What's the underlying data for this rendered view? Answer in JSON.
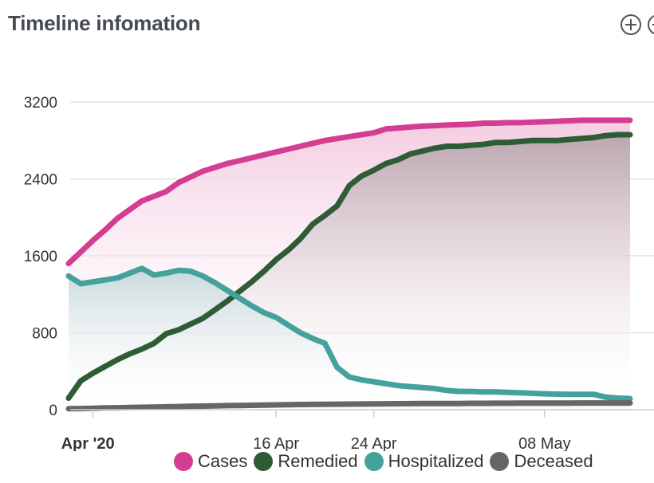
{
  "header": {
    "title": "Timeline infomation"
  },
  "toolbar": {
    "zoom_in_icon": "plus-circle-icon",
    "partial_icon": "circle-icon"
  },
  "chart_data": {
    "type": "area",
    "title": "Timeline infomation",
    "xlabel": "",
    "ylabel": "",
    "ylim": [
      0,
      3200
    ],
    "yticks": [
      "0",
      "800",
      "1600",
      "2400",
      "3200"
    ],
    "ytick_values": [
      0,
      800,
      1600,
      2400,
      3200
    ],
    "xticks": [
      "Apr '20",
      "16 Apr",
      "24 Apr",
      "08 May"
    ],
    "xtick_dates": [
      "2020-04-01",
      "2020-04-16",
      "2020-04-24",
      "2020-05-08"
    ],
    "xtick_bold": [
      true,
      false,
      false,
      false
    ],
    "xlim": [
      "2020-03-30",
      "2020-05-15"
    ],
    "grid": true,
    "legend_position": "bottom-center",
    "x": [
      "2020-03-30",
      "2020-03-31",
      "2020-04-01",
      "2020-04-02",
      "2020-04-03",
      "2020-04-04",
      "2020-04-05",
      "2020-04-06",
      "2020-04-07",
      "2020-04-08",
      "2020-04-09",
      "2020-04-10",
      "2020-04-11",
      "2020-04-12",
      "2020-04-13",
      "2020-04-14",
      "2020-04-15",
      "2020-04-16",
      "2020-04-17",
      "2020-04-18",
      "2020-04-19",
      "2020-04-20",
      "2020-04-21",
      "2020-04-22",
      "2020-04-23",
      "2020-04-24",
      "2020-04-25",
      "2020-04-26",
      "2020-04-27",
      "2020-04-28",
      "2020-04-29",
      "2020-04-30",
      "2020-05-01",
      "2020-05-02",
      "2020-05-03",
      "2020-05-04",
      "2020-05-05",
      "2020-05-06",
      "2020-05-07",
      "2020-05-08",
      "2020-05-09",
      "2020-05-10",
      "2020-05-11",
      "2020-05-12",
      "2020-05-13",
      "2020-05-14",
      "2020-05-15"
    ],
    "series": [
      {
        "name": "Cases",
        "color": "#d33d92",
        "fill": "#f7d9e9",
        "values": [
          1520,
          1640,
          1760,
          1870,
          1990,
          2080,
          2170,
          2220,
          2270,
          2360,
          2420,
          2480,
          2520,
          2560,
          2590,
          2620,
          2650,
          2680,
          2710,
          2740,
          2770,
          2800,
          2820,
          2840,
          2860,
          2880,
          2920,
          2930,
          2940,
          2950,
          2955,
          2960,
          2965,
          2970,
          2980,
          2980,
          2985,
          2985,
          2990,
          2995,
          3000,
          3005,
          3010,
          3010,
          3010,
          3010,
          3010
        ]
      },
      {
        "name": "Remedied",
        "color": "#2d5c36",
        "fill": "#d7cfd3",
        "values": [
          120,
          300,
          380,
          450,
          520,
          580,
          630,
          690,
          790,
          830,
          890,
          950,
          1040,
          1130,
          1230,
          1330,
          1440,
          1560,
          1660,
          1780,
          1930,
          2020,
          2120,
          2330,
          2430,
          2490,
          2560,
          2600,
          2660,
          2690,
          2720,
          2740,
          2740,
          2750,
          2760,
          2780,
          2780,
          2790,
          2800,
          2800,
          2800,
          2810,
          2820,
          2830,
          2850,
          2860,
          2860
        ]
      },
      {
        "name": "Hospitalized",
        "color": "#45a19b",
        "fill": "#dbe7e8",
        "values": [
          1390,
          1310,
          1330,
          1350,
          1370,
          1420,
          1470,
          1400,
          1420,
          1450,
          1440,
          1390,
          1320,
          1240,
          1160,
          1080,
          1010,
          960,
          880,
          800,
          740,
          690,
          440,
          340,
          310,
          290,
          270,
          250,
          240,
          230,
          220,
          200,
          190,
          190,
          185,
          185,
          180,
          175,
          170,
          165,
          162,
          160,
          160,
          160,
          130,
          120,
          115
        ]
      },
      {
        "name": "Deceased",
        "color": "#666666",
        "fill": "#777777",
        "values": [
          10,
          12,
          15,
          18,
          20,
          22,
          25,
          27,
          30,
          32,
          35,
          37,
          40,
          42,
          44,
          46,
          48,
          50,
          52,
          54,
          55,
          56,
          57,
          58,
          59,
          60,
          61,
          62,
          63,
          64,
          64,
          65,
          65,
          66,
          66,
          67,
          67,
          68,
          68,
          68,
          69,
          69,
          70,
          70,
          70,
          70,
          70
        ]
      }
    ]
  }
}
